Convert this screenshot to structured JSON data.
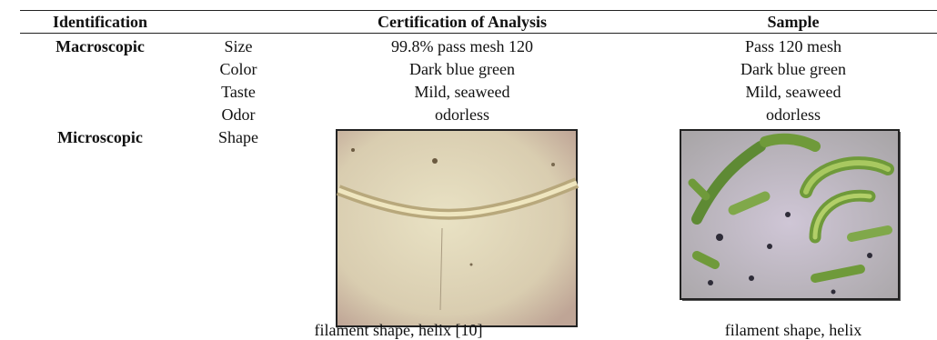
{
  "table": {
    "header": {
      "identification": "Identification",
      "certification": "Certification of Analysis",
      "sample": "Sample"
    },
    "groups": [
      {
        "name": "Macroscopic",
        "rows": [
          {
            "attribute": "Size",
            "certification": "99.8% pass mesh 120",
            "sample": "Pass 120 mesh"
          },
          {
            "attribute": "Color",
            "certification": "Dark blue green",
            "sample": "Dark blue green"
          },
          {
            "attribute": "Taste",
            "certification": "Mild, seaweed",
            "sample": "Mild, seaweed"
          },
          {
            "attribute": "Odor",
            "certification": "odorless",
            "sample": "odorless"
          }
        ]
      },
      {
        "name": "Microscopic",
        "rows": [
          {
            "attribute": "Shape",
            "certification": "filament shape, helix [10]",
            "sample": "filament shape, helix"
          }
        ]
      }
    ]
  }
}
